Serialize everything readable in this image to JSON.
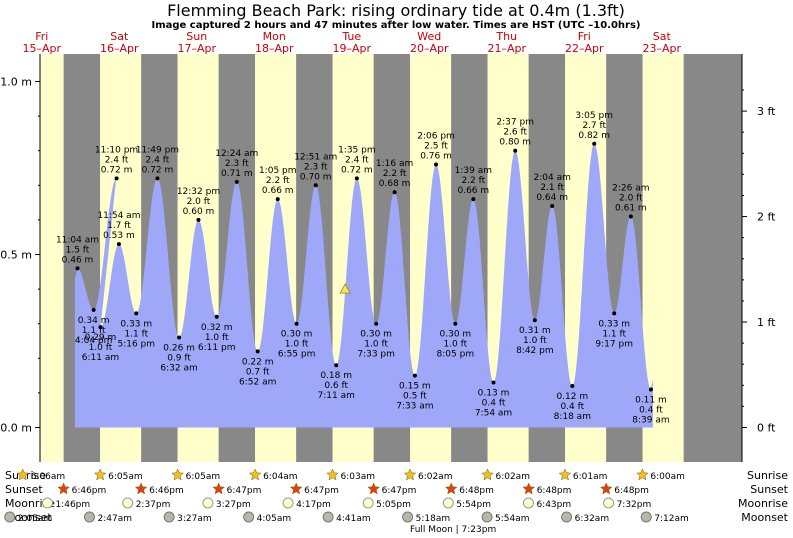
{
  "title": "Flemming Beach Park: rising  ordinary tide at 0.4m (1.3ft)",
  "subtitle": "Image captured 2 hours and 47 minutes after low water. Times are HST (UTC –10.0hrs)",
  "colors": {
    "night": "#888888",
    "day": "#ffffcc",
    "tide_fill": "#9fa8f8",
    "date_text": "#cc0000",
    "sun_star": "#f0c020",
    "sunset_star": "#e04010",
    "moonrise": "#ffffd0",
    "moonset": "#b8b8a8"
  },
  "days": [
    {
      "weekday": "Fri",
      "date": "15–Apr"
    },
    {
      "weekday": "Sat",
      "date": "16–Apr"
    },
    {
      "weekday": "Sun",
      "date": "17–Apr"
    },
    {
      "weekday": "Mon",
      "date": "18–Apr"
    },
    {
      "weekday": "Tue",
      "date": "19–Apr"
    },
    {
      "weekday": "Wed",
      "date": "20–Apr"
    },
    {
      "weekday": "Thu",
      "date": "21–Apr"
    },
    {
      "weekday": "Fri",
      "date": "22–Apr"
    },
    {
      "weekday": "Sat",
      "date": "23–Apr"
    }
  ],
  "chart_data": {
    "type": "area",
    "title": "Flemming Beach Park: rising  ordinary tide at 0.4m (1.3ft)",
    "subtitle": "Image captured 2 hours and 47 minutes after low water. Times are HST (UTC –10.0hrs)",
    "y_left_ticks": [
      "0.0 m",
      "0.5 m",
      "1.0 m"
    ],
    "y_left_values": [
      0.0,
      0.5,
      1.0
    ],
    "y_right_ticks": [
      "0 ft",
      "1 ft",
      "2 ft",
      "3 ft"
    ],
    "y_right_values_m": [
      0.0,
      0.3048,
      0.6096,
      0.9144
    ],
    "ylim_m": [
      -0.07,
      1.08
    ],
    "current": {
      "level_m": 0.4
    },
    "tides": [
      {
        "day": 0,
        "hour": 23.07,
        "height_m": 0.46,
        "labels": [
          "11:04 am",
          "1.5 ft",
          "0.46 m"
        ],
        "type": "high"
      },
      {
        "day": 0,
        "hour": 28.07,
        "height_m": 0.34,
        "labels": [
          "0.34 m",
          "1.1 ft",
          "4:04 pm"
        ],
        "type": "low"
      },
      {
        "day": 0,
        "hour": 35.17,
        "height_m": 0.72,
        "labels": [
          "11:10 pm",
          "2.4 ft",
          "0.72 m"
        ],
        "type": "high"
      },
      {
        "day": 1,
        "hour": 6.18,
        "height_m": 0.29,
        "labels": [
          "0.29 m",
          "1.0 ft",
          "6:11 am"
        ],
        "type": "low"
      },
      {
        "day": 1,
        "hour": 11.9,
        "height_m": 0.53,
        "labels": [
          "11:54 am",
          "1.7 ft",
          "0.53 m"
        ],
        "type": "high"
      },
      {
        "day": 1,
        "hour": 17.27,
        "height_m": 0.33,
        "labels": [
          "0.33 m",
          "1.1 ft",
          "5:16 pm"
        ],
        "type": "low"
      },
      {
        "day": 1,
        "hour": 23.82,
        "height_m": 0.72,
        "labels": [
          "11:49 pm",
          "2.4 ft",
          "0.72 m"
        ],
        "type": "high"
      },
      {
        "day": 2,
        "hour": 6.53,
        "height_m": 0.26,
        "labels": [
          "0.26 m",
          "0.9 ft",
          "6:32 am"
        ],
        "type": "low"
      },
      {
        "day": 2,
        "hour": 12.53,
        "height_m": 0.6,
        "labels": [
          "12:32 pm",
          "2.0 ft",
          "0.60 m"
        ],
        "type": "high"
      },
      {
        "day": 2,
        "hour": 18.18,
        "height_m": 0.32,
        "labels": [
          "0.32 m",
          "1.0 ft",
          "6:11 pm"
        ],
        "type": "low"
      },
      {
        "day": 3,
        "hour": 0.4,
        "height_m": 0.71,
        "labels": [
          "12:24 am",
          "2.3 ft",
          "0.71 m"
        ],
        "type": "high"
      },
      {
        "day": 3,
        "hour": 6.87,
        "height_m": 0.22,
        "labels": [
          "0.22 m",
          "0.7 ft",
          "6:52 am"
        ],
        "type": "low"
      },
      {
        "day": 3,
        "hour": 13.08,
        "height_m": 0.66,
        "labels": [
          "1:05 pm",
          "2.2 ft",
          "0.66 m"
        ],
        "type": "high"
      },
      {
        "day": 3,
        "hour": 18.92,
        "height_m": 0.3,
        "labels": [
          "0.30 m",
          "1.0 ft",
          "6:55 pm"
        ],
        "type": "low"
      },
      {
        "day": 4,
        "hour": 0.85,
        "height_m": 0.7,
        "labels": [
          "12:51 am",
          "2.3 ft",
          "0.70 m"
        ],
        "type": "high"
      },
      {
        "day": 4,
        "hour": 7.18,
        "height_m": 0.18,
        "labels": [
          "0.18 m",
          "0.6 ft",
          "7:11 am"
        ],
        "type": "low"
      },
      {
        "day": 4,
        "hour": 13.58,
        "height_m": 0.72,
        "labels": [
          "1:35 pm",
          "2.4 ft",
          "0.72 m"
        ],
        "type": "high"
      },
      {
        "day": 4,
        "hour": 19.55,
        "height_m": 0.3,
        "labels": [
          "0.30 m",
          "1.0 ft",
          "7:33 pm"
        ],
        "type": "low"
      },
      {
        "day": 5,
        "hour": 1.27,
        "height_m": 0.68,
        "labels": [
          "1:16 am",
          "2.2 ft",
          "0.68 m"
        ],
        "type": "high"
      },
      {
        "day": 5,
        "hour": 7.55,
        "height_m": 0.15,
        "labels": [
          "0.15 m",
          "0.5 ft",
          "7:33 am"
        ],
        "type": "low"
      },
      {
        "day": 5,
        "hour": 14.1,
        "height_m": 0.76,
        "labels": [
          "2:06 pm",
          "2.5 ft",
          "0.76 m"
        ],
        "type": "high"
      },
      {
        "day": 5,
        "hour": 20.08,
        "height_m": 0.3,
        "labels": [
          "0.30 m",
          "1.0 ft",
          "8:05 pm"
        ],
        "type": "low"
      },
      {
        "day": 6,
        "hour": 1.65,
        "height_m": 0.66,
        "labels": [
          "1:39 am",
          "2.2 ft",
          "0.66 m"
        ],
        "type": "high"
      },
      {
        "day": 6,
        "hour": 7.9,
        "height_m": 0.13,
        "labels": [
          "0.13 m",
          "0.4 ft",
          "7:54 am"
        ],
        "type": "low"
      },
      {
        "day": 6,
        "hour": 14.62,
        "height_m": 0.8,
        "labels": [
          "2:37 pm",
          "2.6 ft",
          "0.80 m"
        ],
        "type": "high"
      },
      {
        "day": 6,
        "hour": 20.7,
        "height_m": 0.31,
        "labels": [
          "0.31 m",
          "1.0 ft",
          "8:42 pm"
        ],
        "type": "low"
      },
      {
        "day": 7,
        "hour": 2.07,
        "height_m": 0.64,
        "labels": [
          "2:04 am",
          "2.1 ft",
          "0.64 m"
        ],
        "type": "high"
      },
      {
        "day": 7,
        "hour": 8.3,
        "height_m": 0.12,
        "labels": [
          "0.12 m",
          "0.4 ft",
          "8:18 am"
        ],
        "type": "low"
      },
      {
        "day": 7,
        "hour": 15.08,
        "height_m": 0.82,
        "labels": [
          "3:05 pm",
          "2.7 ft",
          "0.82 m"
        ],
        "type": "high"
      },
      {
        "day": 7,
        "hour": 21.28,
        "height_m": 0.33,
        "labels": [
          "0.33 m",
          "1.1 ft",
          "9:17 pm"
        ],
        "type": "low"
      },
      {
        "day": 8,
        "hour": 2.43,
        "height_m": 0.61,
        "labels": [
          "2:26 am",
          "2.0 ft",
          "0.61 m"
        ],
        "type": "high"
      },
      {
        "day": 8,
        "hour": 8.65,
        "height_m": 0.11,
        "labels": [
          "0.11 m",
          "0.4 ft",
          "8:39 am"
        ],
        "type": "low"
      }
    ],
    "sun_moon_rows": [
      "Sunrise",
      "Sunset",
      "Moonrise",
      "Moonset"
    ],
    "sunrise": [
      "6:06am",
      "6:05am",
      "6:05am",
      "6:04am",
      "6:03am",
      "6:02am",
      "6:02am",
      "6:01am",
      "6:00am"
    ],
    "sunset": [
      "6:46pm",
      "6:46pm",
      "6:47pm",
      "6:47pm",
      "6:47pm",
      "6:48pm",
      "6:48pm",
      "6:48pm"
    ],
    "moonrise": [
      "1:46pm",
      "2:37pm",
      "3:27pm",
      "4:17pm",
      "5:05pm",
      "5:54pm",
      "6:43pm",
      "7:32pm"
    ],
    "moonset": [
      "2:05am",
      "2:47am",
      "3:27am",
      "4:05am",
      "4:41am",
      "5:18am",
      "5:54am",
      "6:32am",
      "7:12am"
    ],
    "full_moon": "Full Moon | 7:23pm"
  }
}
